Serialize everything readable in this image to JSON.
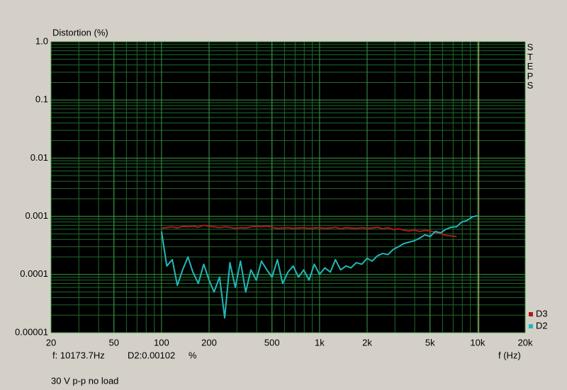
{
  "chart_data": {
    "type": "line",
    "ylabel": "Distortion (%)",
    "xlabel": "f (Hz)",
    "side_label": "STEPS",
    "log_x": true,
    "log_y": true,
    "grid": true,
    "legend": "bottom-right",
    "xlim": [
      20,
      20000
    ],
    "ylim": [
      1e-05,
      1
    ],
    "xticks": [
      20,
      50,
      100,
      200,
      500,
      {
        "value": 1000,
        "label": "1k"
      },
      {
        "value": 2000,
        "label": "2k"
      },
      {
        "value": 5000,
        "label": "5k"
      },
      {
        "value": 10000,
        "label": "10k"
      },
      {
        "value": 20000,
        "label": "20k"
      }
    ],
    "yticks": [
      {
        "value": 1,
        "label": "1.0"
      },
      0.1,
      0.01,
      0.001,
      0.0001,
      1e-05
    ],
    "cursor_x": 10173.7,
    "readout": {
      "frequency": "f: 10173.7Hz",
      "value": "D2:0.00102",
      "unit": "%"
    },
    "note": "30 V p-p no load",
    "x": [
      100,
      108,
      117,
      126,
      136,
      147,
      158,
      171,
      185,
      200,
      215,
      233,
      251,
      271,
      293,
      316,
      341,
      368,
      398,
      429,
      464,
      501,
      541,
      584,
      631,
      681,
      736,
      794,
      858,
      926,
      1000,
      1080,
      1170,
      1260,
      1360,
      1470,
      1580,
      1710,
      1850,
      2000,
      2150,
      2330,
      2510,
      2710,
      2930,
      3160,
      3410,
      3680,
      3980,
      4290,
      4640,
      5010,
      5410,
      5840,
      6310,
      6810,
      7360,
      7940,
      8580,
      9260,
      10000
    ],
    "series": [
      {
        "name": "D3",
        "color": "#b01818",
        "values": [
          0.00062,
          0.00064,
          0.00066,
          0.00063,
          0.00067,
          0.00066,
          0.00068,
          0.00065,
          0.0007,
          0.00067,
          0.00066,
          0.00064,
          0.00066,
          0.00065,
          0.00062,
          0.00064,
          0.00063,
          0.00066,
          0.00067,
          0.00066,
          0.00068,
          0.00065,
          0.00062,
          0.00063,
          0.00064,
          0.00062,
          0.00063,
          0.00064,
          0.00062,
          0.00063,
          0.00064,
          0.00062,
          0.00063,
          0.00065,
          0.00061,
          0.00064,
          0.00063,
          0.00062,
          0.00064,
          0.00062,
          0.00063,
          0.00065,
          0.00061,
          0.00064,
          0.00059,
          0.00061,
          0.00058,
          0.00056,
          0.00058,
          0.00055,
          0.00057,
          0.00056,
          0.00053,
          0.0005,
          0.00047,
          0.00046,
          0.00045,
          null,
          null,
          null,
          null
        ]
      },
      {
        "name": "D2",
        "color": "#20b8b8",
        "values": [
          0.00055,
          0.00014,
          0.00018,
          6.5e-05,
          0.00012,
          0.0002,
          0.00011,
          7e-05,
          0.00015,
          8e-05,
          5e-05,
          9e-05,
          1.8e-05,
          0.00016,
          6e-05,
          0.00017,
          5e-05,
          0.00012,
          8e-05,
          0.00017,
          0.00012,
          9e-05,
          0.00018,
          7e-05,
          0.00011,
          0.00014,
          9e-05,
          0.00012,
          8e-05,
          0.00015,
          0.0001,
          0.00013,
          0.00011,
          0.00018,
          0.00012,
          0.00014,
          0.00013,
          0.00016,
          0.00015,
          0.00019,
          0.00017,
          0.00021,
          0.00023,
          0.00022,
          0.00027,
          0.0003,
          0.00034,
          0.00036,
          0.00038,
          0.00042,
          0.00048,
          0.00045,
          0.00055,
          0.00052,
          0.0006,
          0.00065,
          0.00066,
          0.0008,
          0.00085,
          0.00098,
          0.00102
        ]
      }
    ]
  }
}
